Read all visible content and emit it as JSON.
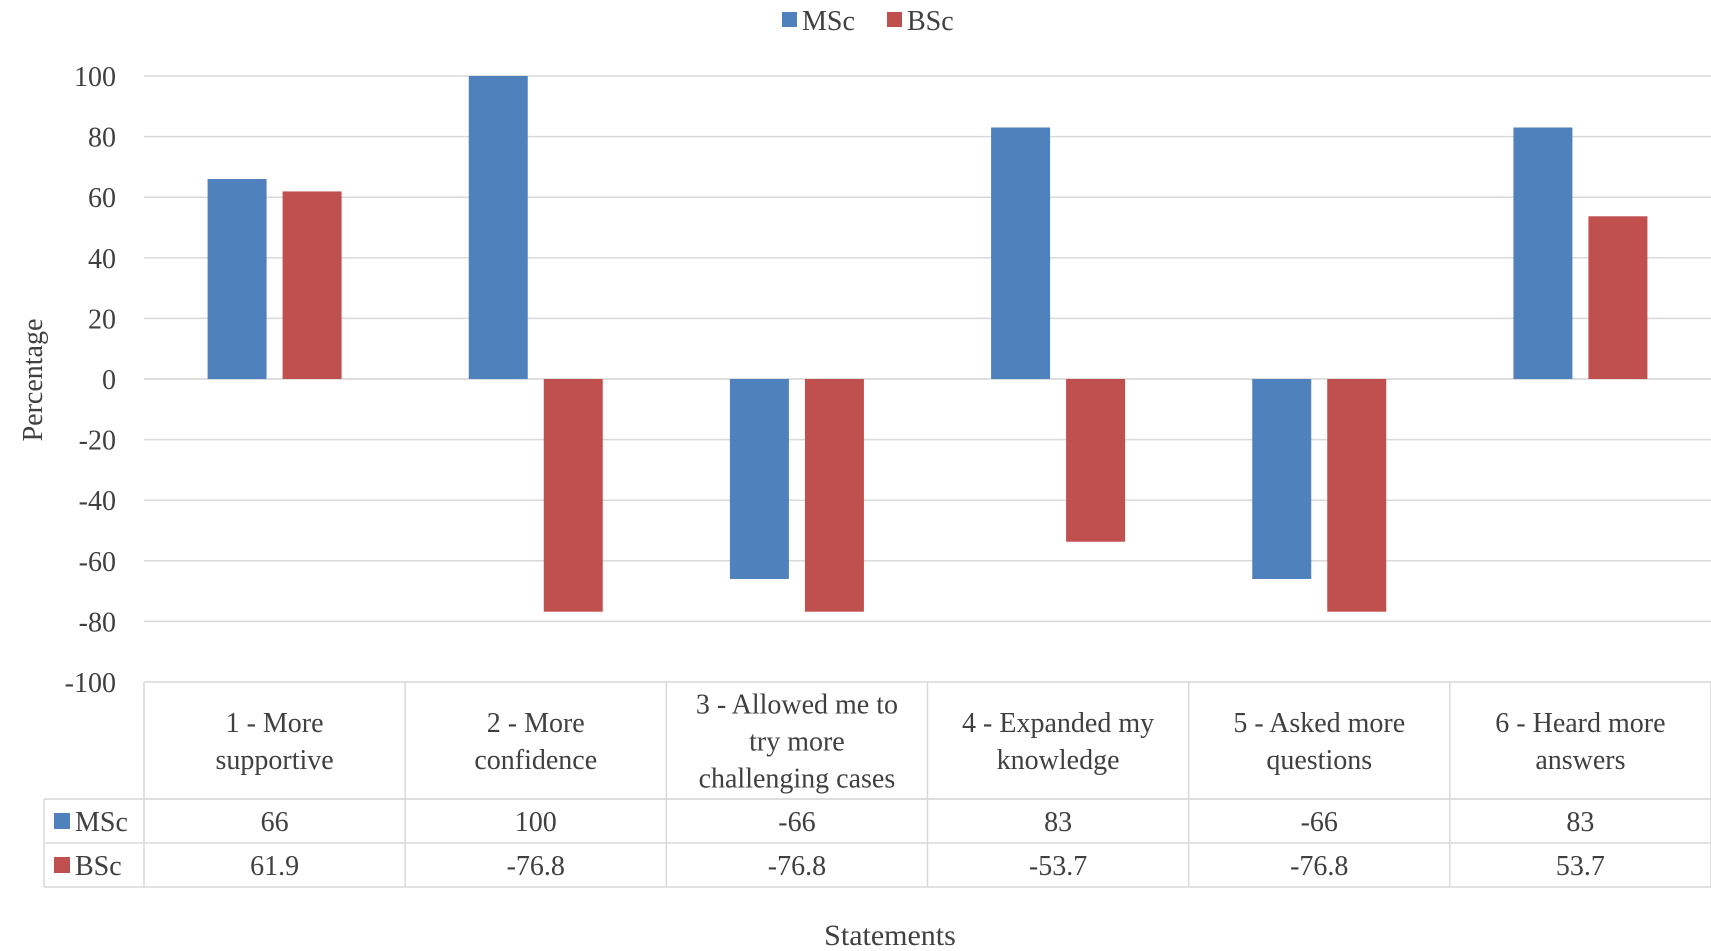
{
  "chart_data": {
    "type": "bar",
    "title": "",
    "xlabel": "Statements",
    "ylabel": "Percentage",
    "ylim": [
      -100,
      100
    ],
    "yticks": [
      100,
      80,
      60,
      40,
      20,
      0,
      -20,
      -40,
      -60,
      -80,
      -100
    ],
    "grid": true,
    "legend_position": "top",
    "data_table": true,
    "categories": [
      [
        "1 - More",
        "supportive"
      ],
      [
        "2 - More",
        "confidence"
      ],
      [
        "3 - Allowed me to",
        "try more",
        "challenging cases"
      ],
      [
        "4 - Expanded my",
        "knowledge"
      ],
      [
        "5 - Asked more",
        "questions"
      ],
      [
        "6 - Heard more",
        "answers"
      ]
    ],
    "series": [
      {
        "name": "MSc",
        "color": "#4F81BD",
        "values": [
          66,
          100,
          -66,
          83,
          -66,
          83
        ],
        "labels": [
          "66",
          "100",
          "-66",
          "83",
          "-66",
          "83"
        ]
      },
      {
        "name": "BSc",
        "color": "#C0504D",
        "values": [
          61.9,
          -76.8,
          -76.8,
          -53.7,
          -76.8,
          53.7
        ],
        "labels": [
          "61.9",
          "-76.8",
          "-76.8",
          "-53.7",
          "-76.8",
          "53.7"
        ]
      }
    ]
  }
}
